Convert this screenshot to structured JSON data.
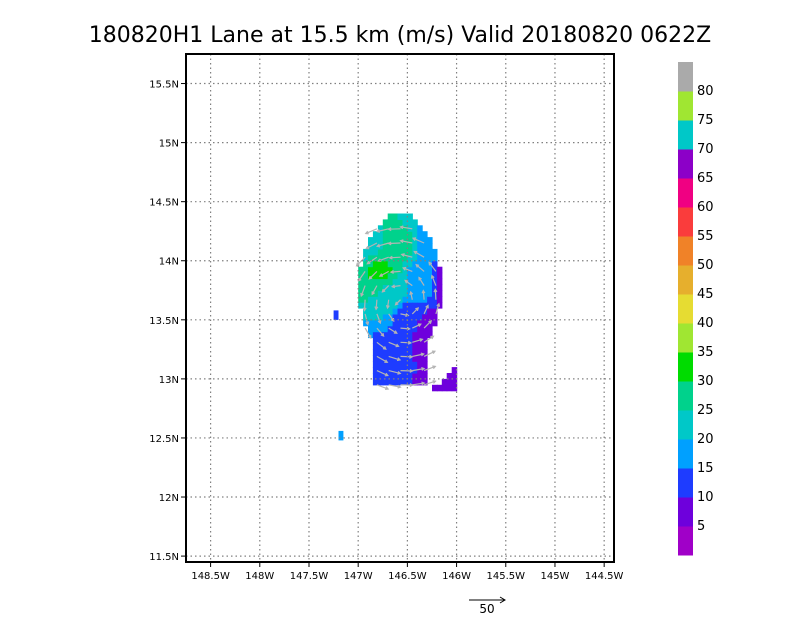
{
  "chart_data": {
    "type": "heatmap",
    "title": "180820H1 Lane at 15.5 km (m/s) Valid 20180820  0622Z",
    "xlim": [
      -148.75,
      -144.4
    ],
    "ylim": [
      11.45,
      15.75
    ],
    "x_ticks": [
      {
        "value": -148.5,
        "label": "148.5W"
      },
      {
        "value": -148.0,
        "label": "148W"
      },
      {
        "value": -147.5,
        "label": "147.5W"
      },
      {
        "value": -147.0,
        "label": "147W"
      },
      {
        "value": -146.5,
        "label": "146.5W"
      },
      {
        "value": -146.0,
        "label": "146W"
      },
      {
        "value": -145.5,
        "label": "145.5W"
      },
      {
        "value": -145.0,
        "label": "145W"
      },
      {
        "value": -144.5,
        "label": "144.5W"
      }
    ],
    "y_ticks": [
      {
        "value": 11.5,
        "label": "11.5N"
      },
      {
        "value": 12.0,
        "label": "12N"
      },
      {
        "value": 12.5,
        "label": "12.5N"
      },
      {
        "value": 13.0,
        "label": "13N"
      },
      {
        "value": 13.5,
        "label": "13.5N"
      },
      {
        "value": 14.0,
        "label": "14N"
      },
      {
        "value": 14.5,
        "label": "14.5N"
      },
      {
        "value": 15.0,
        "label": "15N"
      },
      {
        "value": 15.5,
        "label": "15.5N"
      }
    ],
    "grid": true,
    "colorbar": {
      "placement": "right",
      "labels": [
        "5",
        "10",
        "15",
        "20",
        "25",
        "30",
        "35",
        "40",
        "45",
        "50",
        "55",
        "60",
        "65",
        "70",
        "75",
        "80"
      ],
      "colors": [
        "#a000c8",
        "#6e00dc",
        "#1e3cff",
        "#00a0ff",
        "#00c8c8",
        "#00d28c",
        "#00dc00",
        "#a0e632",
        "#e6dc32",
        "#e6af2d",
        "#f08228",
        "#fa3c3c",
        "#f00082",
        "#8c00c8",
        "#00c8c8",
        "#a0e632",
        "#aaaaaa"
      ]
    },
    "cells": [
      {
        "lon": -146.8,
        "lat": 13.9,
        "value": 31
      },
      {
        "lon": -146.6,
        "lat": 14.1,
        "value": 27
      },
      {
        "lon": -146.9,
        "lat": 14.1,
        "value": 24
      },
      {
        "lon": -146.7,
        "lat": 13.7,
        "value": 24
      },
      {
        "lon": -146.4,
        "lat": 13.8,
        "value": 18
      },
      {
        "lon": -146.3,
        "lat": 14.15,
        "value": 17
      },
      {
        "lon": -146.5,
        "lat": 13.5,
        "value": 12
      },
      {
        "lon": -146.3,
        "lat": 13.4,
        "value": 7
      },
      {
        "lon": -146.1,
        "lat": 13.8,
        "value": 7
      },
      {
        "lon": -146.7,
        "lat": 13.1,
        "value": 11
      },
      {
        "lon": -146.1,
        "lat": 13.05,
        "value": 6
      },
      {
        "lon": -147.25,
        "lat": 13.5,
        "value": 11
      },
      {
        "lon": -147.2,
        "lat": 12.48,
        "value": 16
      }
    ],
    "vector_key": {
      "label": "50",
      "value": 50
    }
  }
}
